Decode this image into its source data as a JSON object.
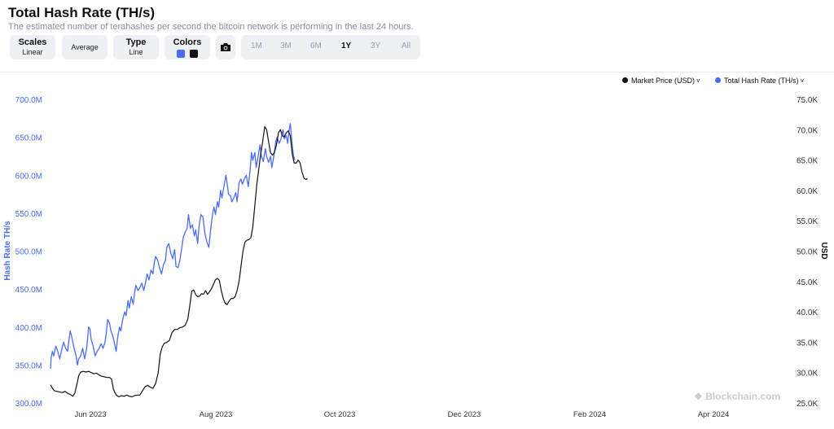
{
  "header": {
    "title": "Total Hash Rate (TH/s)",
    "subtitle": "The estimated number of terahashes per second the bitcoin network is performing in the last 24 hours."
  },
  "controls": {
    "scales": {
      "label": "Scales",
      "value": "Linear"
    },
    "average": {
      "label": "Average"
    },
    "type": {
      "label": "Type",
      "value": "Line"
    },
    "colors": {
      "label": "Colors",
      "swatches": [
        "#4a6cf7",
        "#111111"
      ]
    },
    "ranges": [
      "1M",
      "3M",
      "6M",
      "1Y",
      "3Y",
      "All"
    ],
    "active_range": "1Y"
  },
  "legend": {
    "market_price": "Market Price (USD)",
    "hash_rate": "Total Hash Rate (TH/s)"
  },
  "watermark": "Blockchain.com",
  "colors": {
    "hash_rate": "#4a6cf7",
    "market_price": "#111111"
  },
  "chart_data": {
    "type": "line",
    "x_ticks": [
      "Jun 2023",
      "Aug 2023",
      "Oct 2023",
      "Dec 2023",
      "Feb 2024",
      "Apr 2024"
    ],
    "y_left": {
      "label": "Hash Rate TH/s",
      "min": 300,
      "max": 700,
      "ticks": [
        "300.0M",
        "350.0M",
        "400.0M",
        "450.0M",
        "500.0M",
        "550.0M",
        "600.0M",
        "650.0M",
        "700.0M"
      ]
    },
    "y_right": {
      "label": "USD",
      "min": 25,
      "max": 75,
      "ticks": [
        "25.0K",
        "30.0K",
        "35.0K",
        "40.0K",
        "45.0K",
        "50.0K",
        "55.0K",
        "60.0K",
        "65.0K",
        "70.0K",
        "75.0K"
      ]
    },
    "series": [
      {
        "name": "Total Hash Rate (TH/s)",
        "axis": "left",
        "points": [
          [
            0,
            345
          ],
          [
            0.1,
            360
          ],
          [
            0.3,
            368
          ],
          [
            0.5,
            362
          ],
          [
            0.8,
            375
          ],
          [
            1.1,
            368
          ],
          [
            1.4,
            358
          ],
          [
            1.7,
            370
          ],
          [
            2.0,
            380
          ],
          [
            2.3,
            372
          ],
          [
            2.6,
            368
          ],
          [
            2.8,
            382
          ],
          [
            3.0,
            395
          ],
          [
            3.3,
            385
          ],
          [
            3.6,
            372
          ],
          [
            3.9,
            362
          ],
          [
            4.1,
            350
          ],
          [
            4.3,
            358
          ],
          [
            4.6,
            362
          ],
          [
            4.9,
            372
          ],
          [
            5.2,
            358
          ],
          [
            5.5,
            372
          ],
          [
            5.7,
            390
          ],
          [
            5.8,
            400
          ],
          [
            6.0,
            398
          ],
          [
            6.2,
            383
          ],
          [
            6.5,
            375
          ],
          [
            6.8,
            362
          ],
          [
            7.1,
            368
          ],
          [
            7.4,
            372
          ],
          [
            7.7,
            378
          ],
          [
            8.0,
            372
          ],
          [
            8.3,
            380
          ],
          [
            8.5,
            393
          ],
          [
            8.7,
            410
          ],
          [
            9.0,
            405
          ],
          [
            9.2,
            395
          ],
          [
            9.5,
            388
          ],
          [
            9.7,
            380
          ],
          [
            10.0,
            368
          ],
          [
            10.2,
            385
          ],
          [
            10.5,
            400
          ],
          [
            10.7,
            395
          ],
          [
            11.0,
            410
          ],
          [
            11.3,
            420
          ],
          [
            11.5,
            415
          ],
          [
            11.8,
            435
          ],
          [
            12.0,
            425
          ],
          [
            12.3,
            440
          ],
          [
            12.6,
            430
          ],
          [
            12.8,
            445
          ],
          [
            13.0,
            455
          ],
          [
            13.3,
            448
          ],
          [
            13.6,
            452
          ],
          [
            13.9,
            458
          ],
          [
            14.2,
            448
          ],
          [
            14.5,
            460
          ],
          [
            14.7,
            470
          ],
          [
            15.0,
            462
          ],
          [
            15.3,
            475
          ],
          [
            15.6,
            470
          ],
          [
            15.8,
            485
          ],
          [
            16.0,
            493
          ],
          [
            16.3,
            488
          ],
          [
            16.6,
            478
          ],
          [
            16.9,
            470
          ],
          [
            17.2,
            482
          ],
          [
            17.5,
            488
          ],
          [
            17.7,
            505
          ],
          [
            18.0,
            510
          ],
          [
            18.3,
            498
          ],
          [
            18.6,
            490
          ],
          [
            18.9,
            502
          ],
          [
            19.1,
            480
          ],
          [
            19.4,
            478
          ],
          [
            19.7,
            488
          ],
          [
            20.0,
            505
          ],
          [
            20.2,
            518
          ],
          [
            20.5,
            525
          ],
          [
            20.8,
            530
          ],
          [
            21.0,
            548
          ],
          [
            21.3,
            530
          ],
          [
            21.6,
            535
          ],
          [
            21.9,
            520
          ],
          [
            22.1,
            528
          ],
          [
            22.4,
            510
          ],
          [
            22.6,
            532
          ],
          [
            22.9,
            548
          ],
          [
            23.2,
            545
          ],
          [
            23.5,
            523
          ],
          [
            23.8,
            512
          ],
          [
            24.1,
            505
          ],
          [
            24.4,
            530
          ],
          [
            24.7,
            550
          ],
          [
            24.9,
            558
          ],
          [
            25.1,
            548
          ],
          [
            25.4,
            565
          ],
          [
            25.6,
            558
          ],
          [
            25.9,
            580
          ],
          [
            26.1,
            570
          ],
          [
            26.4,
            585
          ],
          [
            26.7,
            600
          ],
          [
            26.9,
            588
          ],
          [
            27.1,
            575
          ],
          [
            27.4,
            573
          ],
          [
            27.6,
            565
          ],
          [
            27.9,
            570
          ],
          [
            28.2,
            577
          ],
          [
            28.4,
            565
          ],
          [
            28.7,
            590
          ],
          [
            29.0,
            595
          ],
          [
            29.2,
            588
          ],
          [
            29.5,
            595
          ],
          [
            29.8,
            600
          ],
          [
            30.1,
            585
          ],
          [
            30.4,
            608
          ],
          [
            30.6,
            630
          ],
          [
            30.8,
            620
          ],
          [
            31.1,
            630
          ],
          [
            31.3,
            610
          ],
          [
            31.6,
            625
          ],
          [
            31.9,
            640
          ],
          [
            32.1,
            625
          ],
          [
            32.4,
            618
          ],
          [
            32.7,
            635
          ],
          [
            32.9,
            625
          ],
          [
            33.2,
            617
          ],
          [
            33.5,
            625
          ],
          [
            33.7,
            610
          ],
          [
            34.0,
            625
          ],
          [
            34.3,
            645
          ],
          [
            34.5,
            650
          ],
          [
            34.8,
            642
          ],
          [
            35.1,
            648
          ],
          [
            35.4,
            660
          ],
          [
            35.6,
            648
          ],
          [
            35.9,
            652
          ],
          [
            36.1,
            642
          ],
          [
            36.3,
            658
          ],
          [
            36.5,
            668
          ],
          [
            36.8,
            640
          ],
          [
            37.0,
            625
          ],
          [
            37.2,
            620
          ]
        ]
      },
      {
        "name": "Market Price (USD)",
        "axis": "right",
        "points": [
          [
            0,
            28.0
          ],
          [
            0.3,
            27.4
          ],
          [
            0.6,
            27.0
          ],
          [
            1.0,
            26.9
          ],
          [
            1.4,
            26.8
          ],
          [
            1.8,
            26.7
          ],
          [
            2.2,
            26.9
          ],
          [
            2.6,
            26.6
          ],
          [
            3.0,
            26.4
          ],
          [
            3.4,
            26.1
          ],
          [
            3.7,
            26.6
          ],
          [
            4.0,
            28.0
          ],
          [
            4.3,
            29.5
          ],
          [
            4.6,
            30.1
          ],
          [
            5.0,
            30.2
          ],
          [
            5.4,
            30.1
          ],
          [
            5.8,
            30.2
          ],
          [
            6.2,
            30.0
          ],
          [
            6.6,
            29.8
          ],
          [
            7.0,
            29.9
          ],
          [
            7.4,
            29.6
          ],
          [
            7.8,
            29.4
          ],
          [
            8.2,
            29.3
          ],
          [
            8.6,
            29.2
          ],
          [
            9.0,
            29.2
          ],
          [
            9.3,
            28.9
          ],
          [
            9.6,
            27.2
          ],
          [
            10.0,
            26.3
          ],
          [
            10.4,
            26.0
          ],
          [
            10.8,
            26.2
          ],
          [
            11.2,
            26.1
          ],
          [
            11.6,
            26.3
          ],
          [
            12.0,
            26.1
          ],
          [
            12.4,
            26.0
          ],
          [
            12.8,
            26.2
          ],
          [
            13.2,
            26.3
          ],
          [
            13.6,
            26.3
          ],
          [
            14.0,
            27.0
          ],
          [
            14.4,
            27.7
          ],
          [
            14.8,
            27.9
          ],
          [
            15.2,
            27.6
          ],
          [
            15.6,
            27.4
          ],
          [
            16.0,
            28.2
          ],
          [
            16.4,
            30.0
          ],
          [
            16.7,
            33.0
          ],
          [
            17.0,
            34.2
          ],
          [
            17.3,
            34.8
          ],
          [
            17.7,
            35.0
          ],
          [
            18.1,
            35.3
          ],
          [
            18.5,
            36.6
          ],
          [
            18.9,
            37.1
          ],
          [
            19.3,
            37.1
          ],
          [
            19.7,
            37.4
          ],
          [
            20.1,
            37.5
          ],
          [
            20.5,
            37.8
          ],
          [
            20.9,
            38.8
          ],
          [
            21.2,
            41.0
          ],
          [
            21.5,
            43.4
          ],
          [
            21.8,
            43.6
          ],
          [
            22.1,
            42.8
          ],
          [
            22.4,
            42.5
          ],
          [
            22.7,
            42.6
          ],
          [
            23.0,
            43.0
          ],
          [
            23.3,
            42.9
          ],
          [
            23.6,
            43.5
          ],
          [
            23.9,
            42.9
          ],
          [
            24.2,
            43.3
          ],
          [
            24.5,
            43.8
          ],
          [
            24.8,
            44.5
          ],
          [
            25.1,
            45.3
          ],
          [
            25.4,
            45.5
          ],
          [
            25.7,
            45.2
          ],
          [
            26.0,
            43.5
          ],
          [
            26.3,
            42.2
          ],
          [
            26.6,
            41.4
          ],
          [
            26.9,
            41.2
          ],
          [
            27.2,
            41.8
          ],
          [
            27.5,
            42.2
          ],
          [
            27.8,
            42.2
          ],
          [
            28.1,
            42.5
          ],
          [
            28.4,
            43.5
          ],
          [
            28.7,
            45.0
          ],
          [
            29.0,
            47.5
          ],
          [
            29.3,
            50.0
          ],
          [
            29.6,
            51.5
          ],
          [
            29.9,
            51.8
          ],
          [
            30.2,
            51.9
          ],
          [
            30.5,
            52.2
          ],
          [
            30.8,
            54.0
          ],
          [
            31.1,
            57.5
          ],
          [
            31.4,
            61.0
          ],
          [
            31.7,
            63.5
          ],
          [
            32.0,
            66.0
          ],
          [
            32.3,
            68.0
          ],
          [
            32.6,
            70.5
          ],
          [
            32.9,
            70.0
          ],
          [
            33.2,
            68.0
          ],
          [
            33.5,
            66.2
          ],
          [
            33.8,
            65.8
          ],
          [
            34.1,
            66.3
          ],
          [
            34.4,
            67.5
          ],
          [
            34.7,
            69.5
          ],
          [
            35.0,
            70.0
          ],
          [
            35.3,
            69.0
          ],
          [
            35.6,
            68.8
          ],
          [
            35.9,
            69.5
          ],
          [
            36.2,
            69.8
          ],
          [
            36.5,
            69.0
          ],
          [
            36.8,
            66.0
          ],
          [
            37.1,
            64.5
          ],
          [
            37.4,
            64.5
          ],
          [
            37.7,
            65.0
          ],
          [
            38.0,
            64.5
          ],
          [
            38.3,
            63.0
          ],
          [
            38.6,
            62.0
          ],
          [
            38.9,
            61.8
          ],
          [
            39.1,
            62.0
          ]
        ]
      }
    ]
  }
}
